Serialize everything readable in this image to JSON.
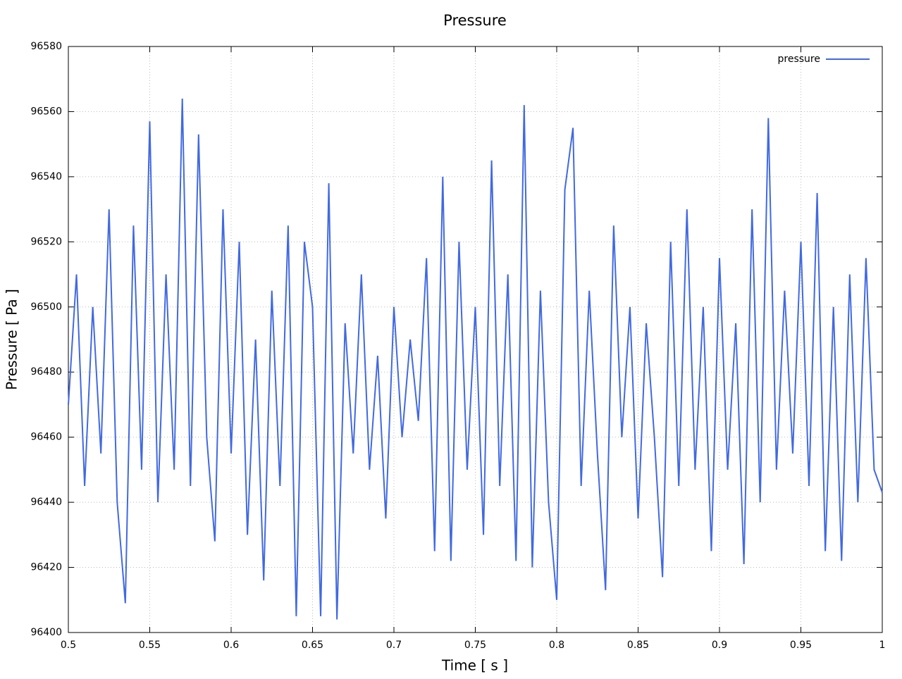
{
  "chart_data": {
    "type": "line",
    "title": "Pressure",
    "x_label": "Time [ s ]",
    "y_label": "Pressure [ Pa ]",
    "x": [
      0.5,
      0.505,
      0.51,
      0.515,
      0.52,
      0.525,
      0.53,
      0.535,
      0.54,
      0.545,
      0.55,
      0.555,
      0.56,
      0.565,
      0.57,
      0.575,
      0.58,
      0.585,
      0.59,
      0.595,
      0.6,
      0.605,
      0.61,
      0.615,
      0.62,
      0.625,
      0.63,
      0.635,
      0.64,
      0.645,
      0.65,
      0.655,
      0.66,
      0.665,
      0.67,
      0.675,
      0.68,
      0.685,
      0.69,
      0.695,
      0.7,
      0.705,
      0.71,
      0.715,
      0.72,
      0.725,
      0.73,
      0.735,
      0.74,
      0.745,
      0.75,
      0.755,
      0.76,
      0.765,
      0.77,
      0.775,
      0.78,
      0.785,
      0.79,
      0.795,
      0.8,
      0.805,
      0.81,
      0.815,
      0.82,
      0.825,
      0.83,
      0.835,
      0.84,
      0.845,
      0.85,
      0.855,
      0.86,
      0.865,
      0.87,
      0.875,
      0.88,
      0.885,
      0.89,
      0.895,
      0.9,
      0.905,
      0.91,
      0.915,
      0.92,
      0.925,
      0.93,
      0.935,
      0.94,
      0.945,
      0.95,
      0.955,
      0.96,
      0.965,
      0.97,
      0.975,
      0.98,
      0.985,
      0.99,
      0.995,
      1
    ],
    "series": [
      {
        "name": "pressure",
        "color": "#4169e1",
        "values": [
          96470,
          96510,
          96445,
          96500,
          96455,
          96530,
          96440,
          96409,
          96525,
          96450,
          96557,
          96440,
          96510,
          96450,
          96564,
          96445,
          96553,
          96460,
          96428,
          96530,
          96455,
          96520,
          96430,
          96490,
          96416,
          96505,
          96445,
          96525,
          96405,
          96520,
          96500,
          96405,
          96538,
          96404,
          96495,
          96455,
          96510,
          96450,
          96485,
          96435,
          96500,
          96460,
          96490,
          96465,
          96515,
          96425,
          96540,
          96422,
          96520,
          96450,
          96500,
          96430,
          96545,
          96445,
          96510,
          96422,
          96562,
          96420,
          96505,
          96440,
          96410,
          96536,
          96555,
          96445,
          96505,
          96455,
          96413,
          96525,
          96460,
          96500,
          96435,
          96495,
          96460,
          96417,
          96520,
          96445,
          96530,
          96450,
          96500,
          96425,
          96515,
          96450,
          96495,
          96421,
          96530,
          96440,
          96558,
          96450,
          96505,
          96455,
          96520,
          96445,
          96535,
          96425,
          96500,
          96422,
          96510,
          96440,
          96515,
          96450,
          96443
        ]
      }
    ],
    "xlim": [
      0.5,
      1
    ],
    "xticks": [
      0.5,
      0.55,
      0.6,
      0.65,
      0.7,
      0.75,
      0.8,
      0.85,
      0.9,
      0.95,
      1
    ],
    "ylim": [
      96400,
      96580
    ],
    "yticks": [
      96400,
      96420,
      96440,
      96460,
      96480,
      96500,
      96520,
      96540,
      96560,
      96580
    ],
    "grid": true,
    "legend": "top-right"
  }
}
